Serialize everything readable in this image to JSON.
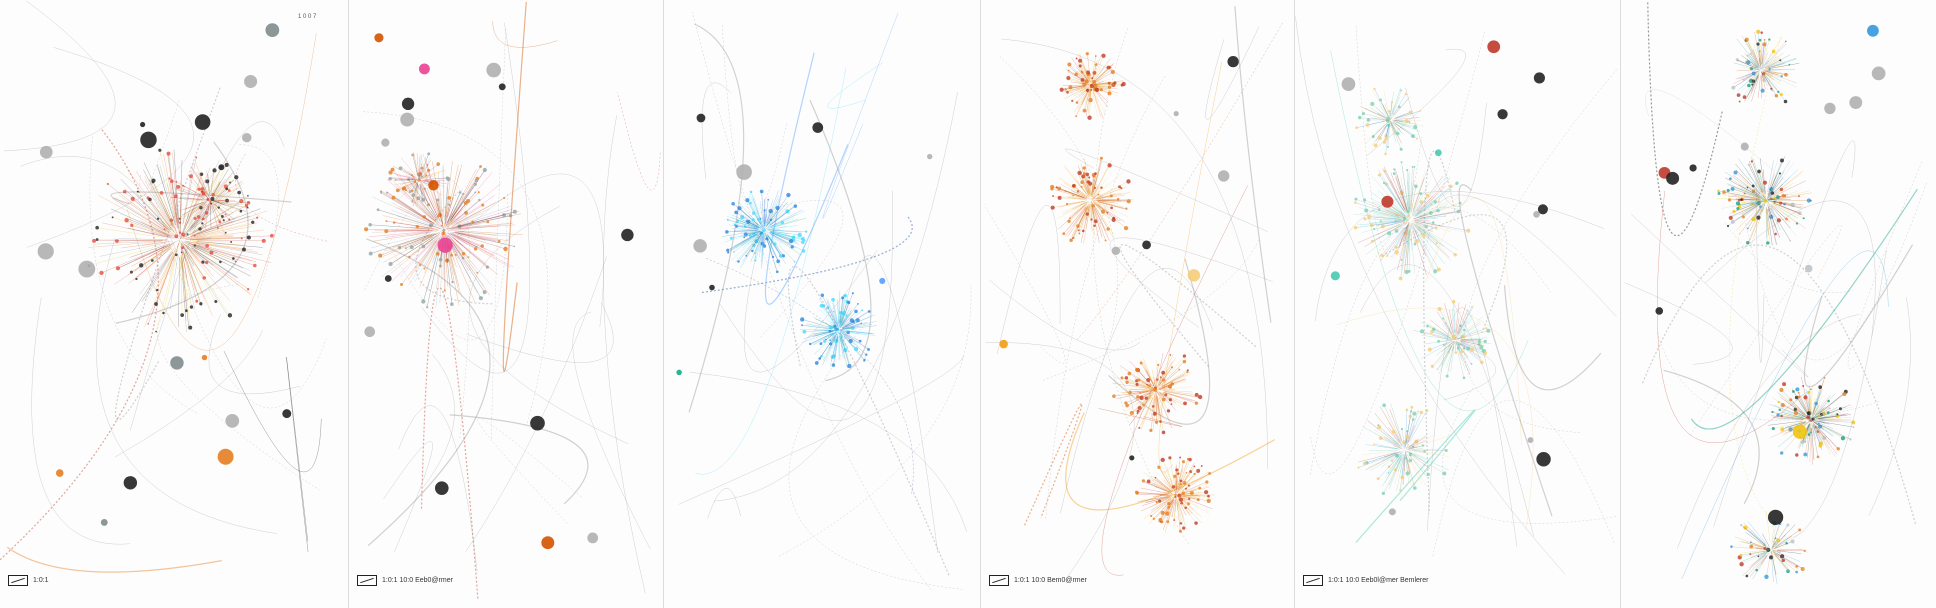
{
  "panels": [
    {
      "id": "p1",
      "caption": "1:0:1",
      "corner": "1 0 0 7",
      "palette": [
        "#c0392b",
        "#e74c3c",
        "#e67e22",
        "#f1c40f",
        "#222222",
        "#7f8c8d"
      ]
    },
    {
      "id": "p2",
      "caption": "1:0:1 10:0 Eeb0@rmer",
      "palette": [
        "#c0392b",
        "#e67e22",
        "#d35400",
        "#222222",
        "#95a5a6",
        "#e84393"
      ]
    },
    {
      "id": "p3",
      "caption": "",
      "palette": [
        "#1f4e9c",
        "#2e86de",
        "#54a0ff",
        "#0abde3",
        "#48dbfb",
        "#10ac84"
      ]
    },
    {
      "id": "p4",
      "caption": "1:0:1 10:0 Bem0@rmer",
      "palette": [
        "#d35400",
        "#e67e22",
        "#f39c12",
        "#e1b12c",
        "#c0392b",
        "#f5cd79"
      ]
    },
    {
      "id": "p5",
      "caption": "1:0:1 10:0 Eeb0l@mer Bemlerer",
      "palette": [
        "#95a5a6",
        "#7fcfb4",
        "#48c9b0",
        "#3498db",
        "#f5cd79",
        "#c0392b"
      ]
    },
    {
      "id": "p6",
      "caption": "",
      "palette": [
        "#222222",
        "#bdc3c7",
        "#c0392b",
        "#e67e22",
        "#3498db",
        "#f1c40f",
        "#16a085"
      ]
    }
  ]
}
